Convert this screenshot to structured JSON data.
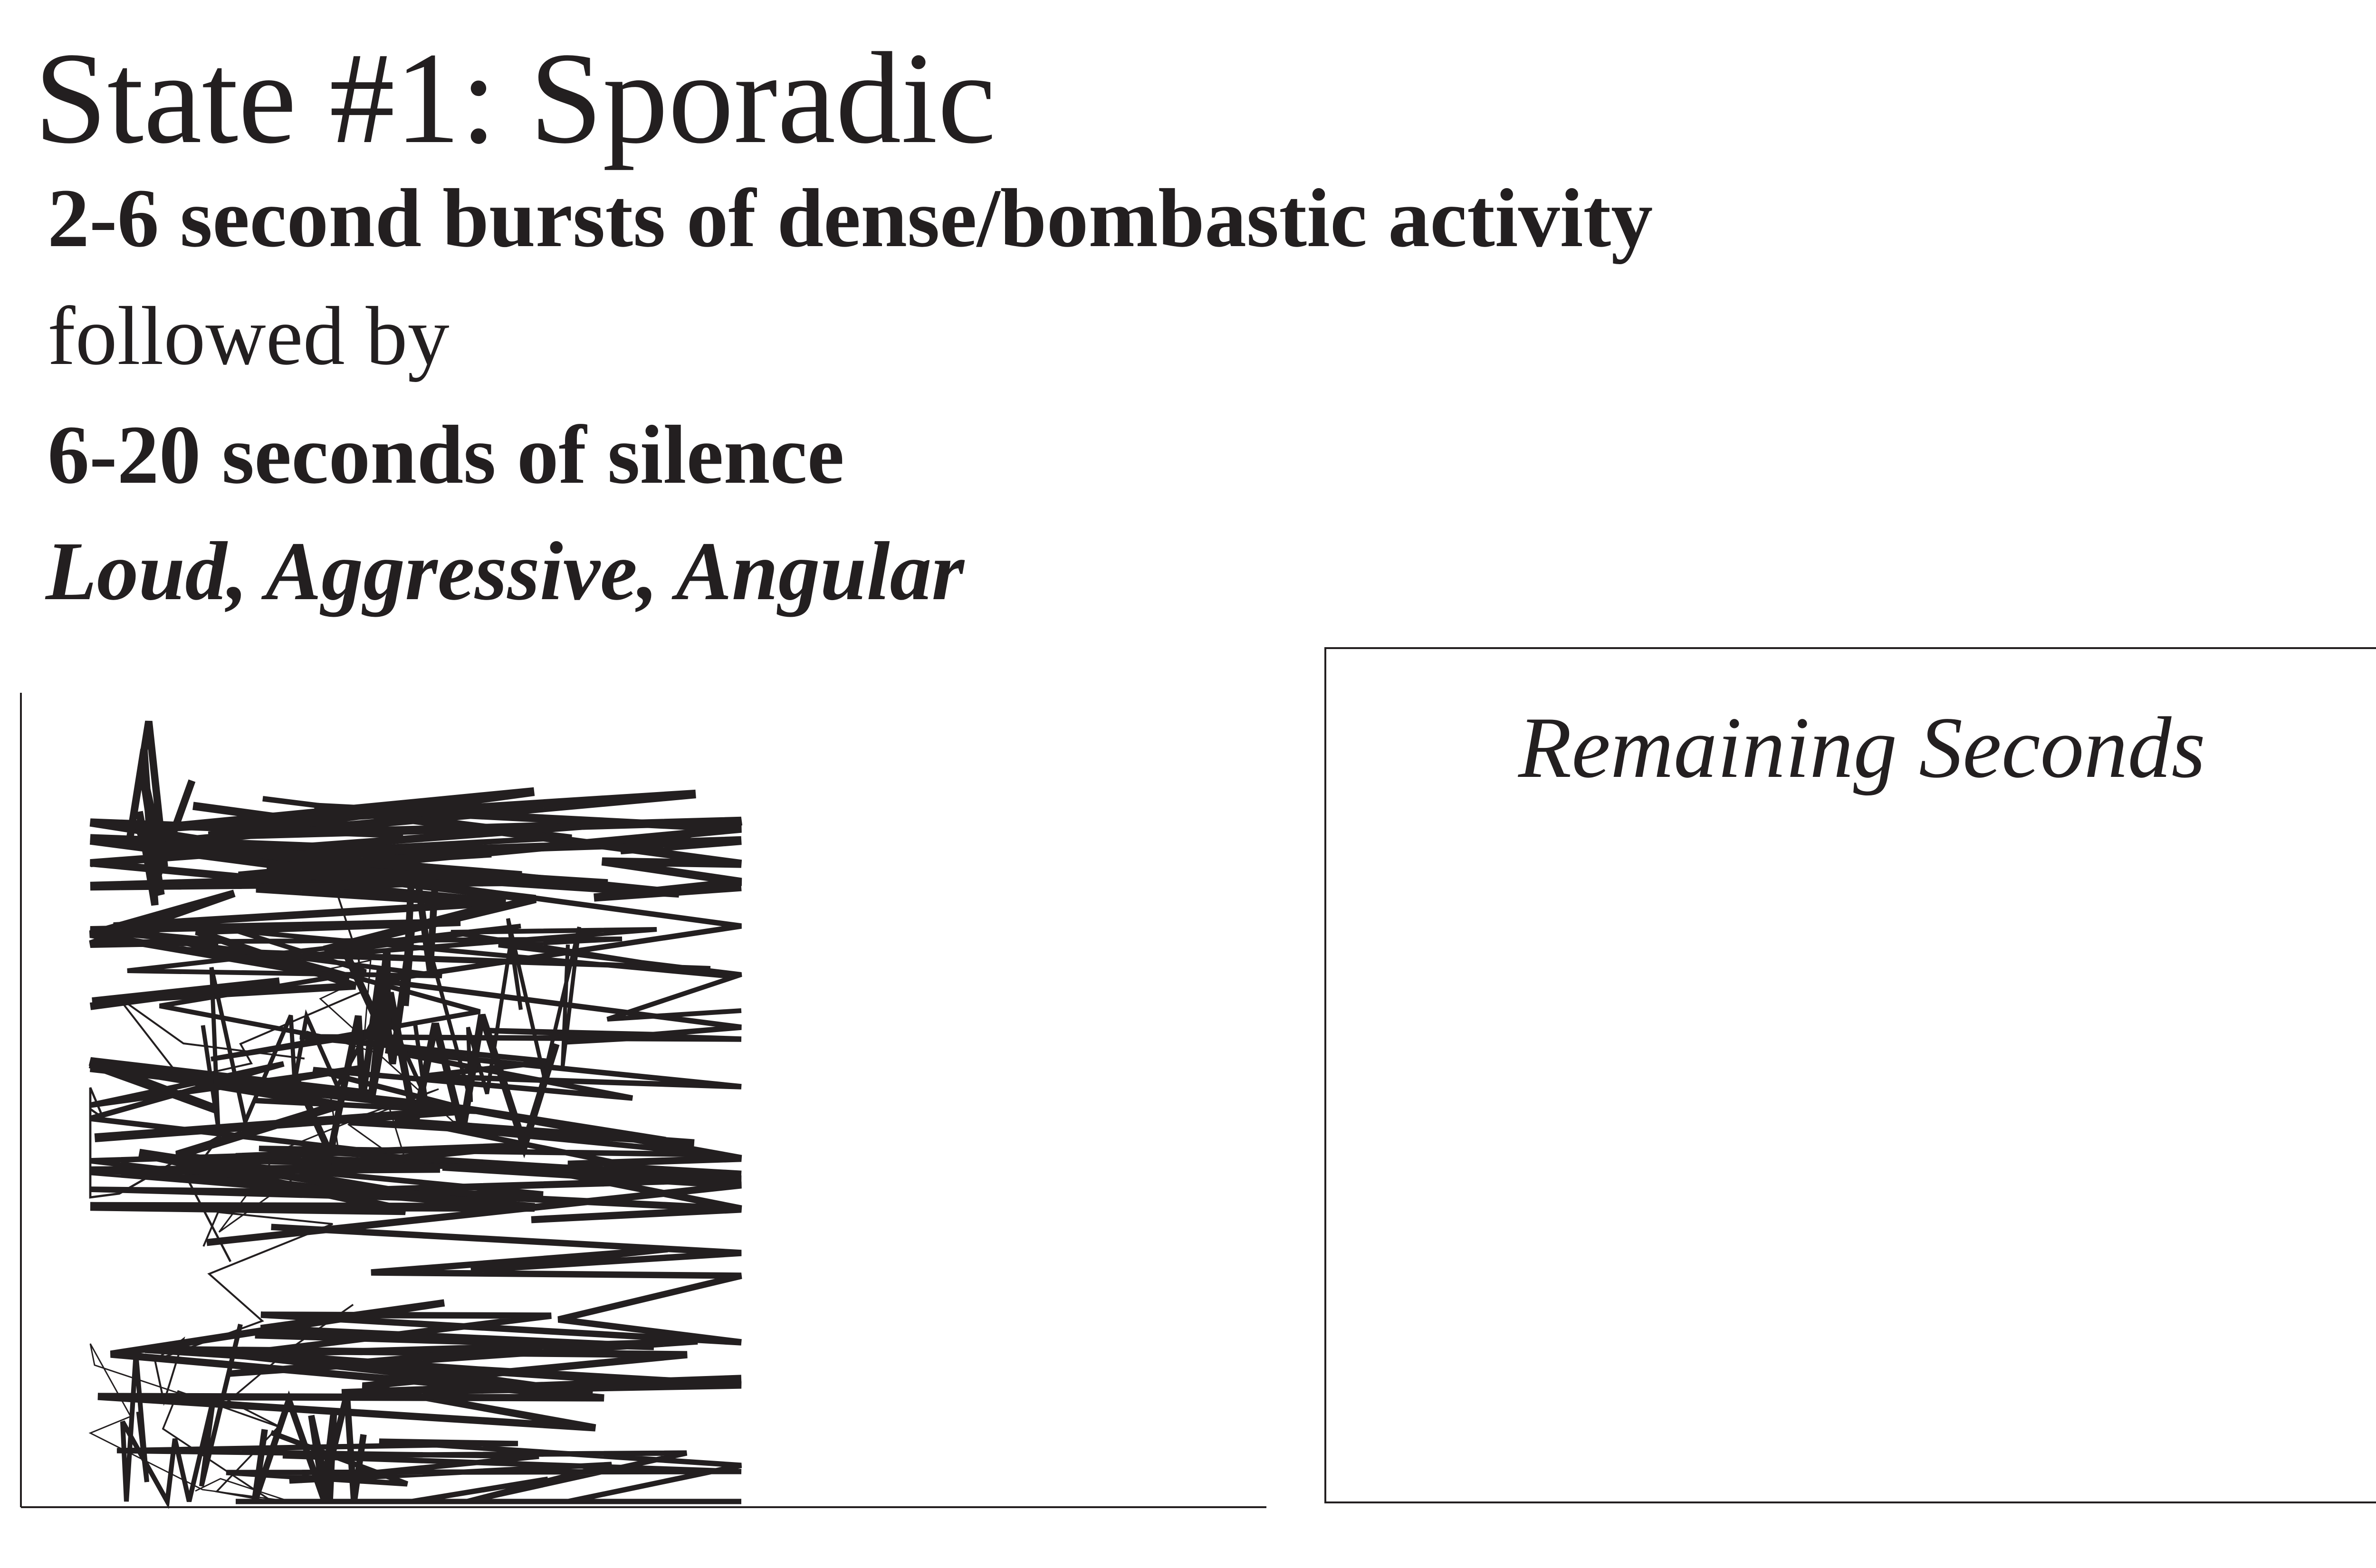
{
  "header": {
    "title": "State #1: Sporadic",
    "line1": "2-6 second bursts of dense/bombastic activity",
    "line2": "followed by",
    "line3": "6-20 seconds of silence",
    "line4": "Loud, Aggressive, Angular"
  },
  "panel": {
    "label": "Remaining Seconds"
  },
  "colors": {
    "ink": "#231f20",
    "background": "#ffffff"
  }
}
